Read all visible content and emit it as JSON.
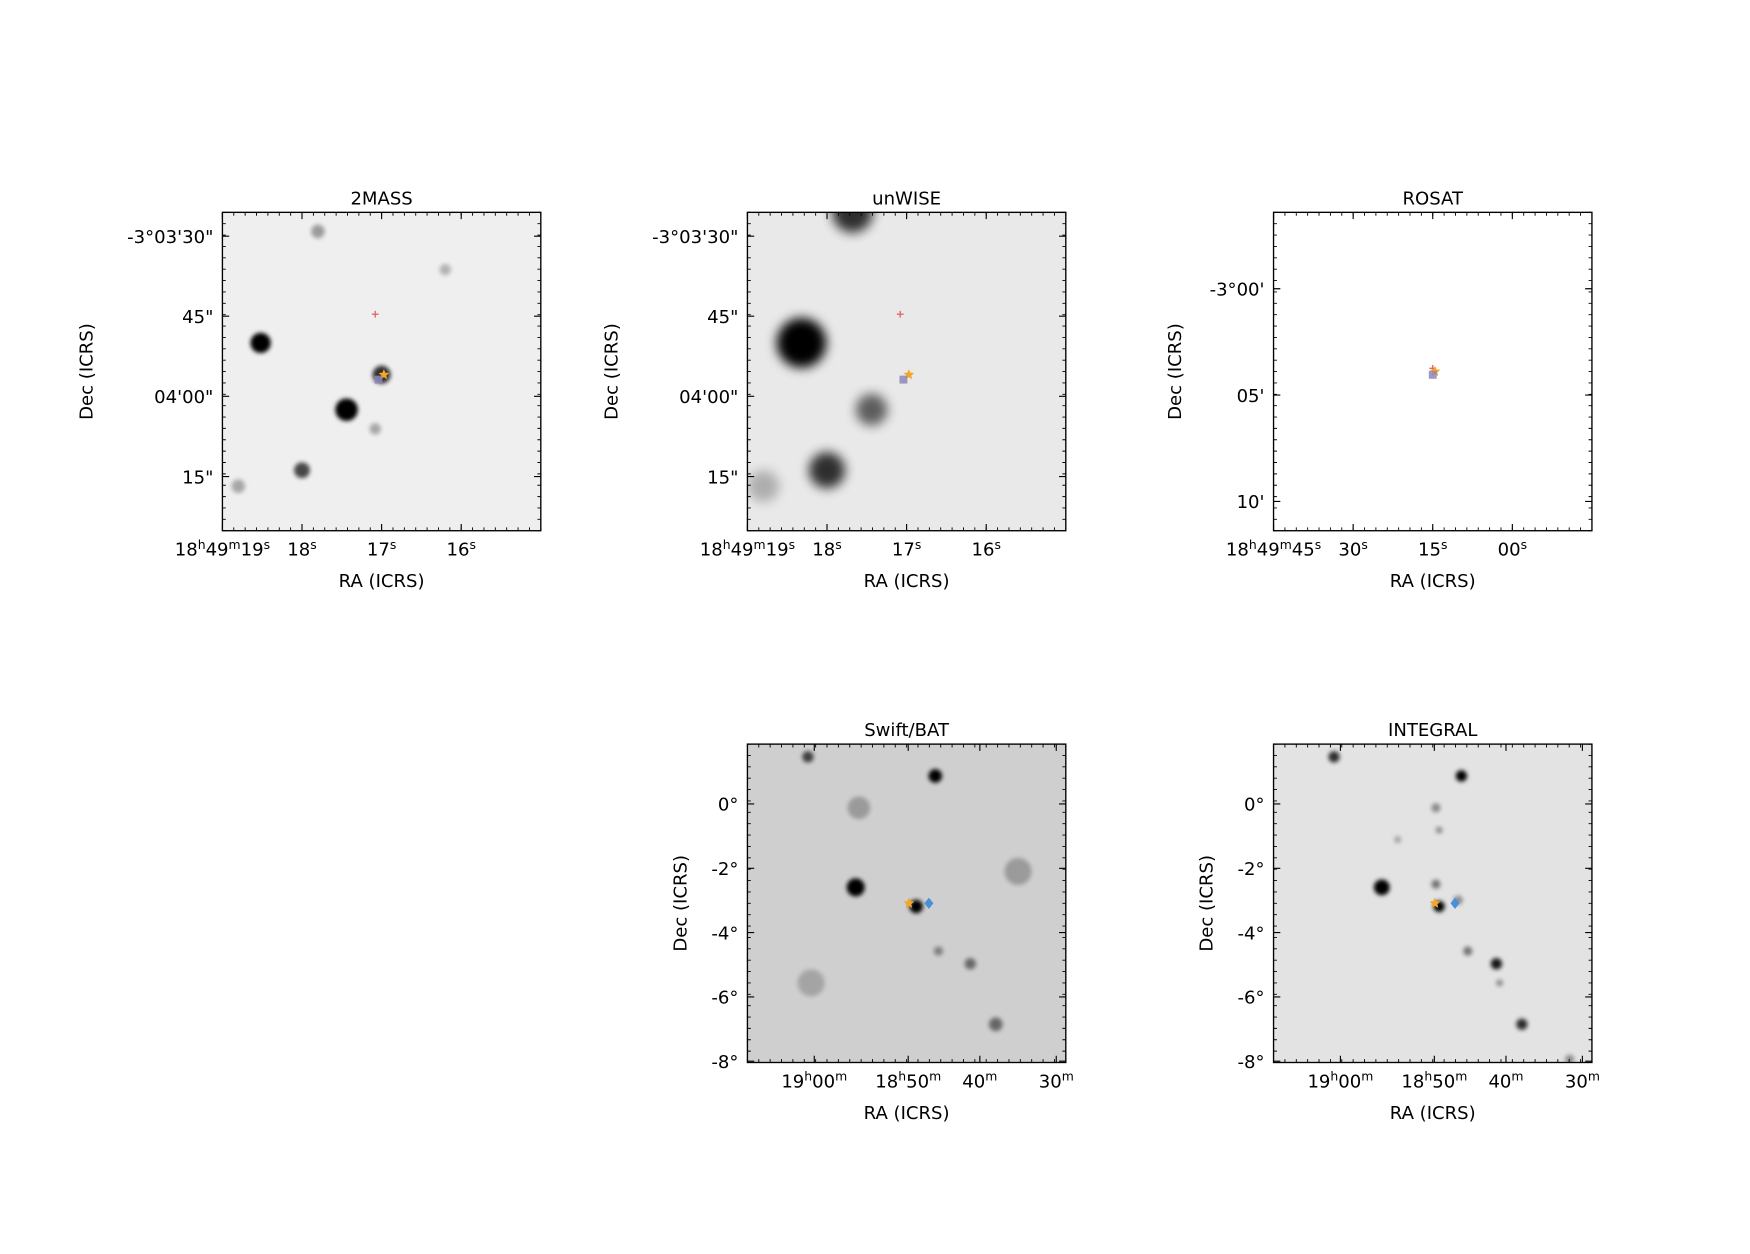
{
  "panels": [
    {
      "title": "2MASS",
      "xlabel": "RA (ICRS)",
      "ylabel": "Dec (ICRS)",
      "xticks": [
        "18h49m19s",
        "18s",
        "17s",
        "16s"
      ],
      "yticks": [
        "-3°03'30\"",
        "45\"",
        "04'00\"",
        "15\""
      ]
    },
    {
      "title": "unWISE",
      "xlabel": "RA (ICRS)",
      "ylabel": "Dec (ICRS)",
      "xticks": [
        "18h49m19s",
        "18s",
        "17s",
        "16s"
      ],
      "yticks": [
        "-3°03'30\"",
        "45\"",
        "04'00\"",
        "15\""
      ]
    },
    {
      "title": "ROSAT",
      "xlabel": "RA (ICRS)",
      "ylabel": "Dec (ICRS)",
      "xticks": [
        "18h49m45s",
        "30s",
        "15s",
        "00s"
      ],
      "yticks": [
        "-3°00'",
        "05'",
        "10'"
      ]
    },
    {
      "title": "Swift/BAT",
      "xlabel": "RA (ICRS)",
      "ylabel": "Dec (ICRS)",
      "xticks": [
        "19h00m",
        "18h50m",
        "40m",
        "30m"
      ],
      "yticks": [
        "0°",
        "-2°",
        "-4°",
        "-6°",
        "-8°"
      ]
    },
    {
      "title": "INTEGRAL",
      "xlabel": "RA (ICRS)",
      "ylabel": "Dec (ICRS)",
      "xticks": [
        "19h00m",
        "18h50m",
        "40m",
        "30m"
      ],
      "yticks": [
        "0°",
        "-2°",
        "-4°",
        "-6°",
        "-8°"
      ]
    }
  ]
}
